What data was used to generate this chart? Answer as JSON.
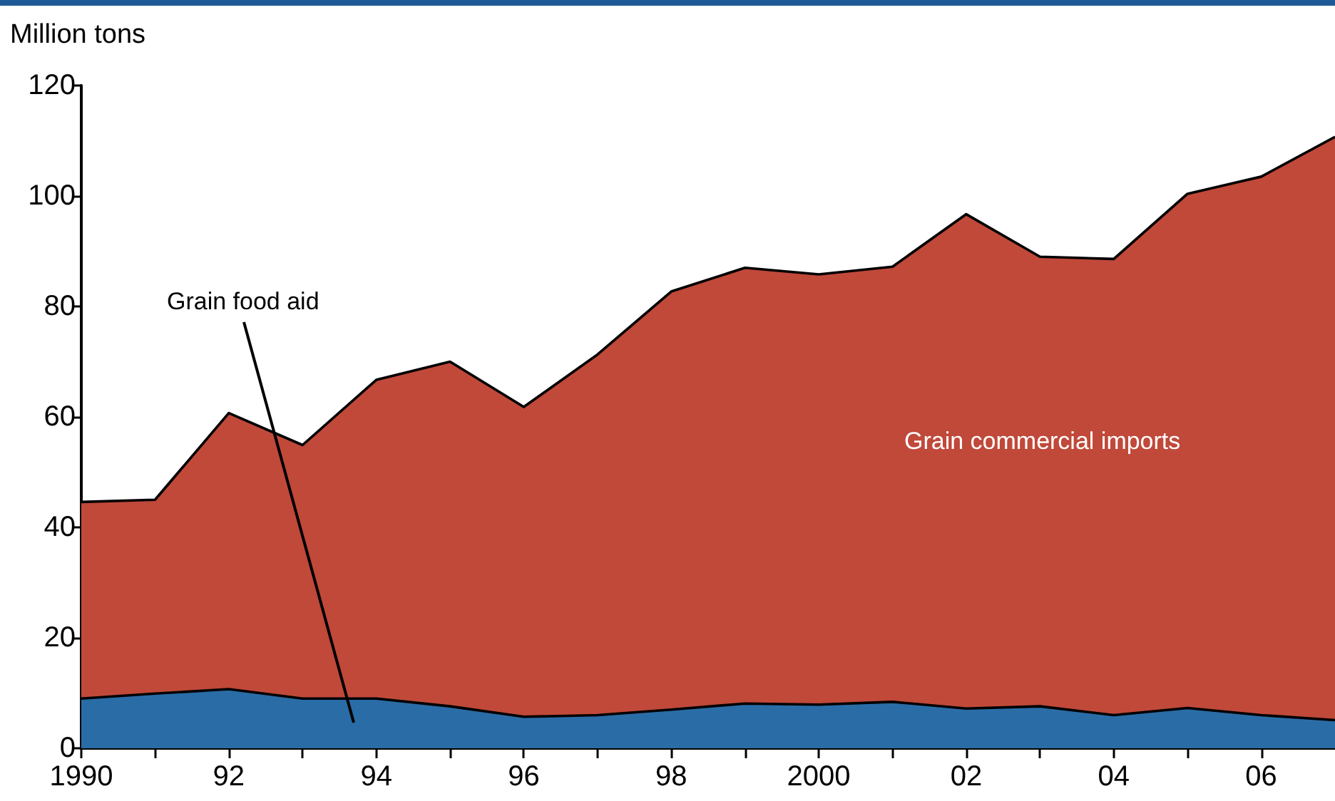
{
  "chart_data": {
    "type": "area",
    "stacked": true,
    "ylabel": "Million tons",
    "x": [
      1990,
      1991,
      1992,
      1993,
      1994,
      1995,
      1996,
      1997,
      1998,
      1999,
      2000,
      2001,
      2002,
      2003,
      2004,
      2005,
      2006,
      2007
    ],
    "series": [
      {
        "name": "Grain food aid",
        "color": "#2a6ca6",
        "values": [
          9.0,
          9.9,
          10.7,
          9.0,
          9.0,
          7.6,
          5.7,
          6.0,
          7.0,
          8.1,
          7.9,
          8.4,
          7.2,
          7.6,
          6.0,
          7.3,
          6.0,
          5.1
        ]
      },
      {
        "name": "Grain commercial imports",
        "color": "#c0493a",
        "values": [
          35.6,
          35.1,
          50.0,
          45.9,
          57.7,
          62.4,
          56.1,
          65.3,
          75.7,
          78.9,
          77.9,
          78.8,
          89.5,
          81.4,
          82.6,
          93.1,
          97.5,
          105.6
        ]
      }
    ],
    "xlim": [
      1990,
      2007
    ],
    "xticks": [
      {
        "value": 1990,
        "label": "1990"
      },
      {
        "value": 1991,
        "label": null
      },
      {
        "value": 1992,
        "label": "92"
      },
      {
        "value": 1993,
        "label": null
      },
      {
        "value": 1994,
        "label": "94"
      },
      {
        "value": 1995,
        "label": null
      },
      {
        "value": 1996,
        "label": "96"
      },
      {
        "value": 1997,
        "label": null
      },
      {
        "value": 1998,
        "label": "98"
      },
      {
        "value": 1999,
        "label": null
      },
      {
        "value": 2000,
        "label": "2000"
      },
      {
        "value": 2001,
        "label": null
      },
      {
        "value": 2002,
        "label": "02"
      },
      {
        "value": 2003,
        "label": null
      },
      {
        "value": 2004,
        "label": "04"
      },
      {
        "value": 2005,
        "label": null
      },
      {
        "value": 2006,
        "label": "06"
      }
    ],
    "ylim": [
      0,
      120
    ],
    "yticks": [
      0,
      20,
      40,
      60,
      80,
      100,
      120
    ],
    "grid": false,
    "legend": false,
    "marker": "none",
    "line_style": "solid"
  }
}
